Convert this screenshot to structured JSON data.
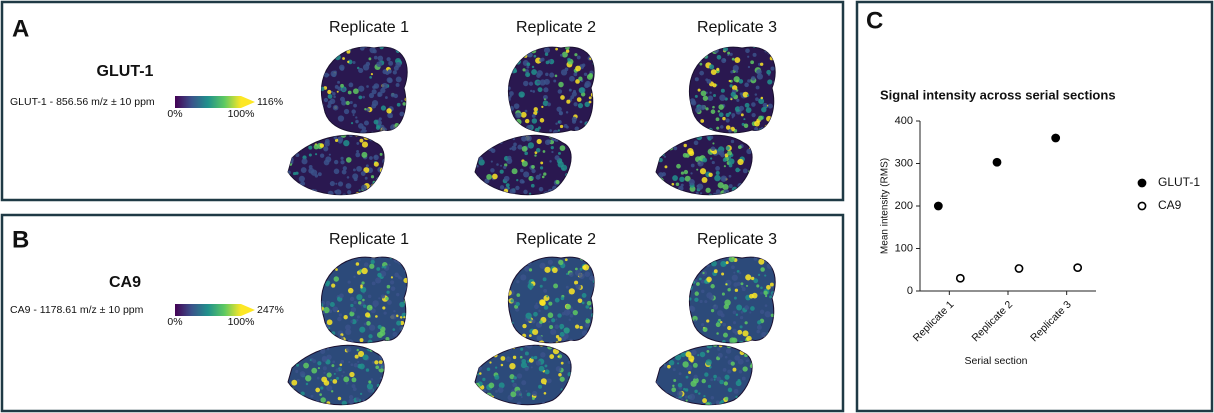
{
  "panels": [
    {
      "letter": "A",
      "title": "GLUT-1",
      "colorbar_label": "GLUT-1 - 856.56 m/z ± 10 ppm",
      "colorbar_ticks": [
        "0%",
        "100%",
        "116%"
      ],
      "replicates": [
        "Replicate 1",
        "Replicate 2",
        "Replicate 3"
      ]
    },
    {
      "letter": "B",
      "title": "CA9",
      "colorbar_label": "CA9 - 1178.61 m/z ± 10 ppm",
      "colorbar_ticks": [
        "0%",
        "100%",
        "247%"
      ],
      "replicates": [
        "Replicate 1",
        "Replicate 2",
        "Replicate 3"
      ]
    },
    {
      "letter": "C"
    }
  ],
  "chart_data": {
    "type": "scatter",
    "title": "Signal intensity across serial sections",
    "x_label": "Serial section",
    "y_label": "Mean intensity (RMS)",
    "categories": [
      "Replicate 1",
      "Replicate 2",
      "Replicate 3"
    ],
    "series": [
      {
        "name": "GLUT-1",
        "color": "#000000",
        "marker": "filled",
        "values": [
          200,
          303,
          360
        ]
      },
      {
        "name": "CA9",
        "color": "#000000",
        "marker": "open",
        "values": [
          30,
          53,
          55
        ]
      }
    ],
    "ylim": [
      0,
      400
    ],
    "yticks": [
      0,
      100,
      200,
      300,
      400
    ],
    "grid": false,
    "legend": "right"
  }
}
